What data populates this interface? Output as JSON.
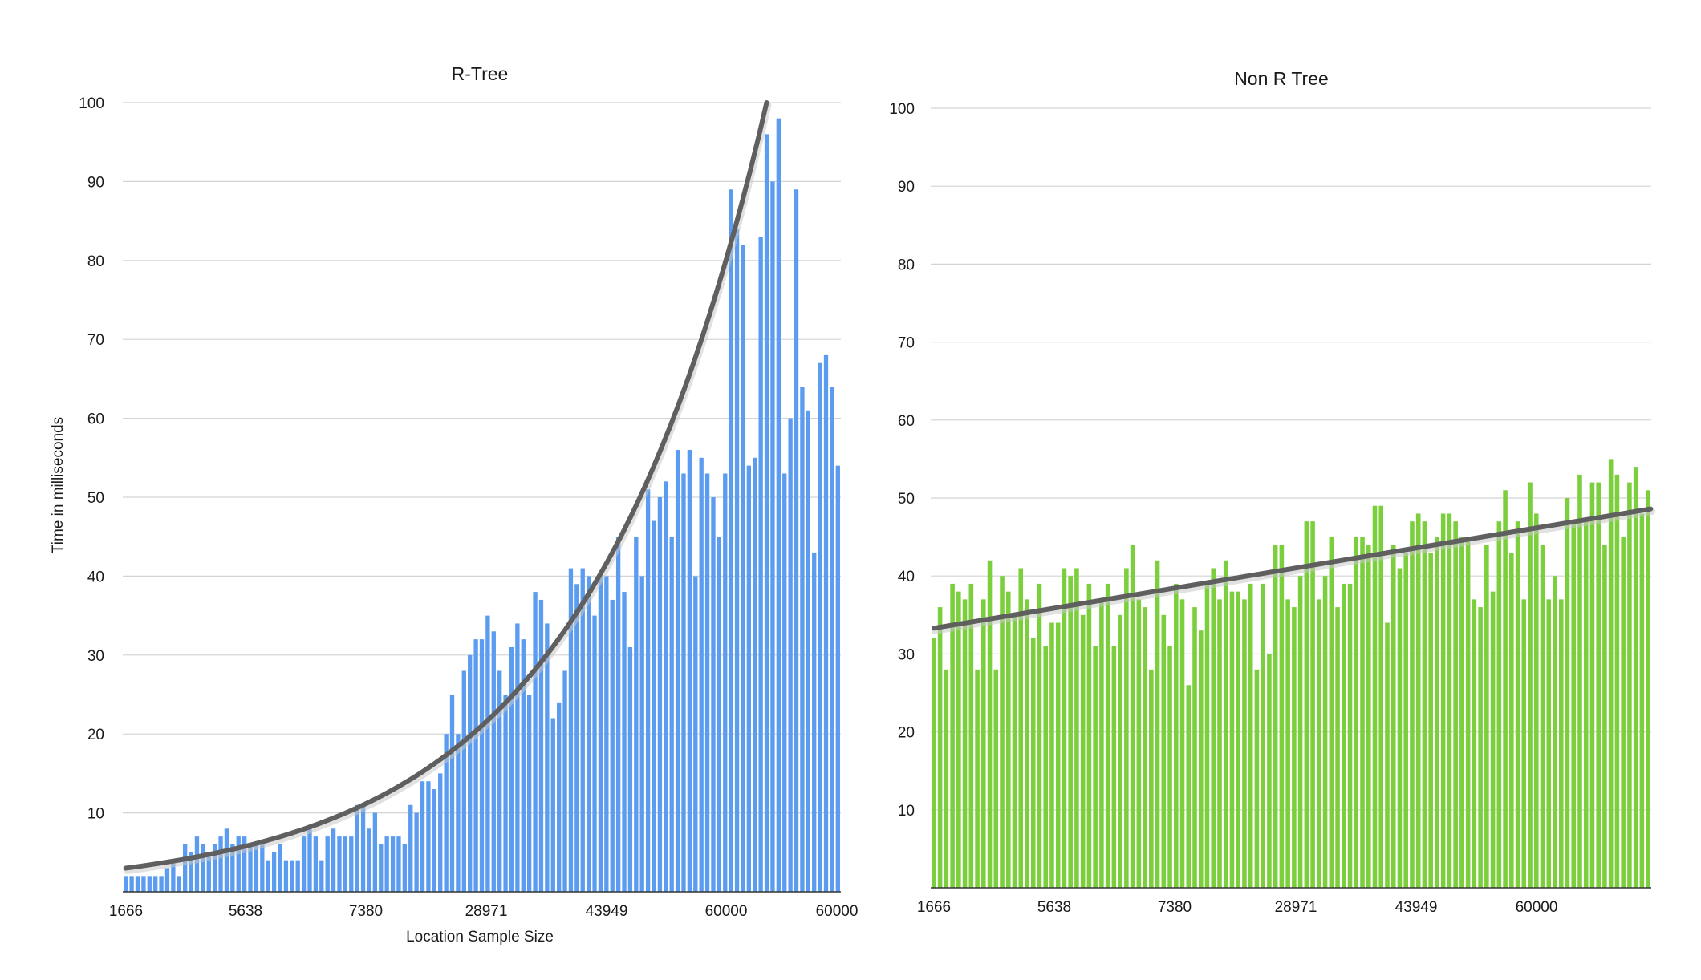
{
  "chart_data": [
    {
      "type": "bar",
      "title": "R-Tree",
      "xlabel": "Location Sample Size",
      "ylabel": "Time in milliseconds",
      "ylim": [
        0,
        100
      ],
      "yticks": [
        10,
        20,
        30,
        40,
        50,
        60,
        70,
        80,
        90,
        100
      ],
      "xtick_labels": [
        "1666",
        "5638",
        "7380",
        "28971",
        "43949",
        "60000",
        "60000"
      ],
      "grid": true,
      "bar_color": "#5b9cf0",
      "trendline": {
        "type": "exponential",
        "start": 3,
        "end": 100,
        "color": "#5f5f5f"
      },
      "values": [
        2,
        2,
        2,
        2,
        2,
        2,
        2,
        3,
        4,
        2,
        6,
        5,
        7,
        6,
        5,
        6,
        7,
        8,
        6,
        7,
        7,
        6,
        6,
        6,
        4,
        5,
        6,
        4,
        4,
        4,
        7,
        8,
        7,
        4,
        7,
        8,
        7,
        7,
        7,
        11,
        11,
        8,
        10,
        6,
        7,
        7,
        7,
        6,
        11,
        10,
        14,
        14,
        13,
        15,
        20,
        25,
        20,
        28,
        30,
        32,
        32,
        35,
        33,
        28,
        25,
        31,
        34,
        32,
        25,
        38,
        37,
        34,
        22,
        24,
        28,
        41,
        39,
        41,
        40,
        35,
        40,
        40,
        37,
        45,
        38,
        31,
        45,
        40,
        51,
        47,
        50,
        52,
        45,
        56,
        53,
        56,
        40,
        55,
        53,
        50,
        45,
        53,
        89,
        84,
        82,
        54,
        55,
        83,
        96,
        90,
        98,
        53,
        60,
        89,
        64,
        61,
        43,
        67,
        68,
        64,
        54
      ]
    },
    {
      "type": "bar",
      "title": "Non R Tree",
      "xlabel": "",
      "ylabel": "",
      "ylim": [
        0,
        100
      ],
      "yticks": [
        10,
        20,
        30,
        40,
        50,
        60,
        70,
        80,
        90,
        100
      ],
      "xtick_labels": [
        "1666",
        "5638",
        "7380",
        "28971",
        "43949",
        "60000"
      ],
      "grid": true,
      "bar_color": "#7ccf3c",
      "trendline": {
        "type": "linear",
        "start": 33.3,
        "end": 48.6,
        "color": "#5f5f5f"
      },
      "values": [
        32,
        36,
        28,
        39,
        38,
        37,
        39,
        28,
        37,
        42,
        28,
        40,
        38,
        35,
        41,
        37,
        32,
        39,
        31,
        34,
        34,
        41,
        40,
        41,
        35,
        39,
        31,
        37,
        39,
        31,
        35,
        41,
        44,
        37,
        36,
        28,
        42,
        35,
        31,
        39,
        37,
        26,
        36,
        33,
        39,
        41,
        37,
        42,
        38,
        38,
        37,
        39,
        28,
        39,
        30,
        44,
        44,
        37,
        36,
        40,
        47,
        47,
        37,
        40,
        45,
        36,
        39,
        39,
        45,
        45,
        44,
        49,
        49,
        34,
        44,
        41,
        43,
        47,
        48,
        47,
        43,
        45,
        48,
        48,
        47,
        45,
        45,
        37,
        36,
        44,
        38,
        47,
        51,
        43,
        47,
        37,
        52,
        48,
        44,
        37,
        40,
        37,
        50,
        47,
        53,
        47,
        52,
        52,
        44,
        55,
        53,
        45,
        52,
        54,
        48,
        51
      ]
    }
  ]
}
